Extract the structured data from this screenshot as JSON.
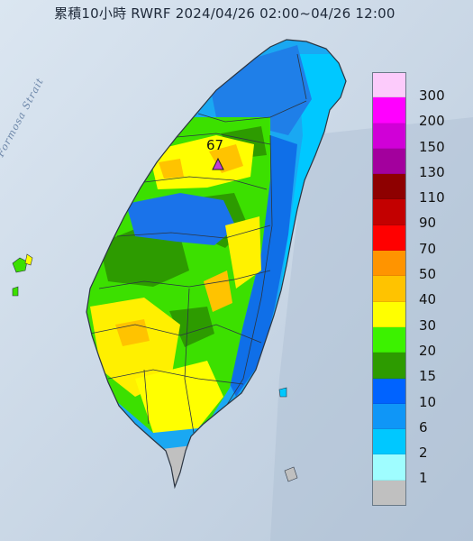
{
  "title": "累積10小時 RWRF 2024/04/26 02:00~04/26 12:00",
  "strait_label": "Formosa Strait",
  "peak": {
    "value": "67",
    "color": "#c23fd6"
  },
  "legend": [
    {
      "label": "300",
      "color": "#fccbfb"
    },
    {
      "label": "200",
      "color": "#ff00ff"
    },
    {
      "label": "150",
      "color": "#d000d7"
    },
    {
      "label": "130",
      "color": "#a3009d"
    },
    {
      "label": "110",
      "color": "#8e0000"
    },
    {
      "label": "90",
      "color": "#c30000"
    },
    {
      "label": "70",
      "color": "#ff0000"
    },
    {
      "label": "50",
      "color": "#ff9400"
    },
    {
      "label": "40",
      "color": "#ffc300"
    },
    {
      "label": "30",
      "color": "#ffff00"
    },
    {
      "label": "20",
      "color": "#3cf200"
    },
    {
      "label": "15",
      "color": "#2d9b00"
    },
    {
      "label": "10",
      "color": "#0063ff"
    },
    {
      "label": "6",
      "color": "#0f96f7"
    },
    {
      "label": "2",
      "color": "#00c8ff"
    },
    {
      "label": "1",
      "color": "#9ffdff"
    },
    {
      "label": "",
      "color": "#c0c0c0"
    }
  ]
}
